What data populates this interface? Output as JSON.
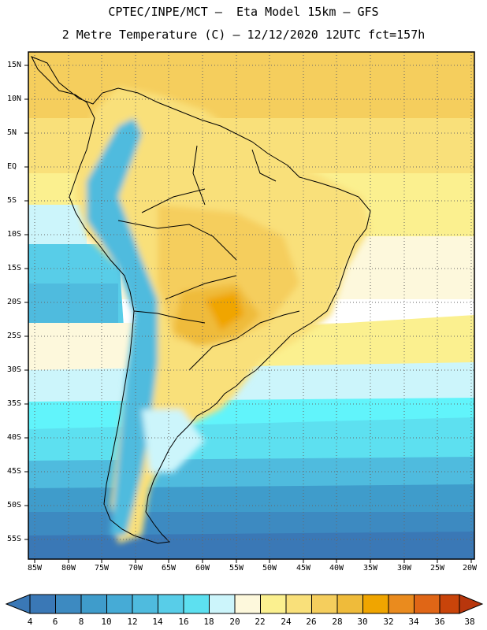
{
  "title": {
    "line1": "CPTEC/INPE/MCT –  Eta Model 15km – GFS",
    "line2": "2 Metre Temperature (C) – 12/12/2020 12UTC fct=157h"
  },
  "map": {
    "lat_labels": [
      "15N",
      "10N",
      "5N",
      "EQ",
      "5S",
      "10S",
      "15S",
      "20S",
      "25S",
      "30S",
      "35S",
      "40S",
      "45S",
      "50S",
      "55S"
    ],
    "lon_labels": [
      "85W",
      "80W",
      "75W",
      "70W",
      "65W",
      "60W",
      "55W",
      "50W",
      "45W",
      "40W",
      "35W",
      "30W",
      "25W",
      "20W"
    ]
  },
  "colorbar": {
    "labels": [
      "4",
      "6",
      "8",
      "10",
      "12",
      "14",
      "16",
      "18",
      "20",
      "22",
      "24",
      "26",
      "28",
      "30",
      "32",
      "34",
      "36",
      "38"
    ],
    "colors": [
      "#3a78b6",
      "#3d8ac1",
      "#3f9ccb",
      "#46abd6",
      "#4fbbde",
      "#58cde8",
      "#5de0f0",
      "#61f4fb",
      "#ccf5fb",
      "#fdf8dc",
      "#fbf08f",
      "#f9e07a",
      "#f5ce5d",
      "#efbb3a",
      "#f0a500",
      "#ea8b1e",
      "#e06616",
      "#c9440a",
      "#b8360c"
    ]
  }
}
